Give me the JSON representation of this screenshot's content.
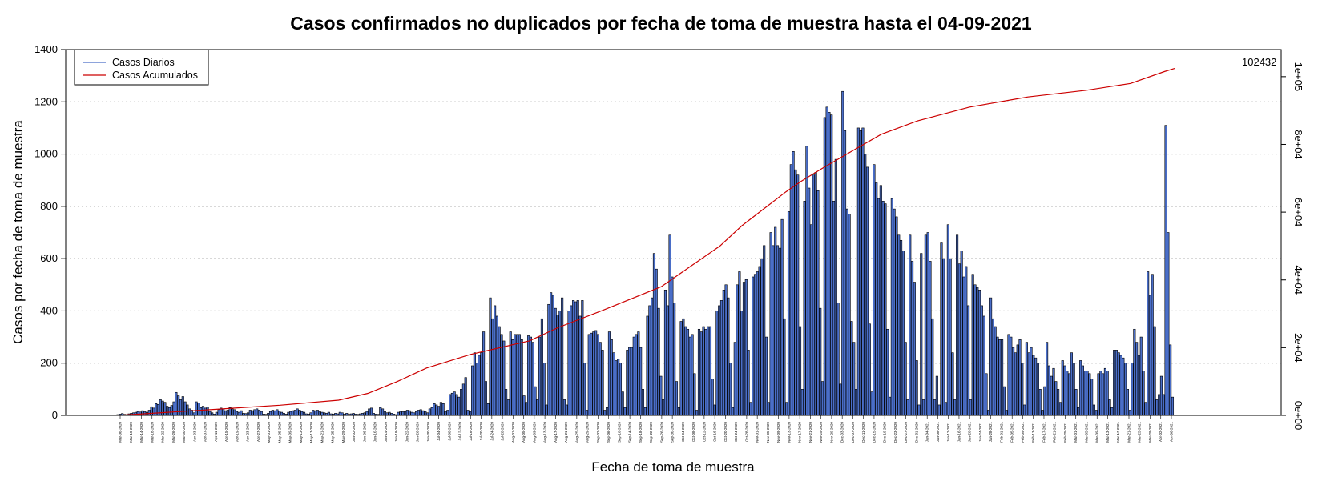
{
  "chart_data": {
    "type": "bar",
    "title": "Casos confirmados no duplicados por fecha de toma de muestra hasta el 04-09-2021",
    "xlabel": "Fecha de toma de muestra",
    "ylabel": "Casos por fecha de toma de muestra",
    "ylim": [
      0,
      1400
    ],
    "yticks": [
      0,
      200,
      400,
      600,
      800,
      1000,
      1200,
      1400
    ],
    "y2lim": [
      0,
      108000
    ],
    "y2ticks": [
      "0e+00",
      "2e+04",
      "4e+04",
      "6e+04",
      "8e+04",
      "1e+05"
    ],
    "grid": true,
    "legend_position": "top-left",
    "colors": {
      "daily": "#4a6ec8",
      "bar_outline": "#000000",
      "cumulative": "#cc0000",
      "grid": "#999999"
    },
    "final_cumulative_label": "102432",
    "series": [
      {
        "name": "Casos Diarios",
        "kind": "bar",
        "values": [
          2,
          3,
          5,
          7,
          4,
          3,
          6,
          8,
          10,
          12,
          15,
          13,
          18,
          14,
          12,
          20,
          33,
          28,
          45,
          42,
          60,
          55,
          50,
          35,
          30,
          38,
          52,
          88,
          75,
          60,
          72,
          52,
          40,
          25,
          20,
          10,
          52,
          48,
          30,
          35,
          28,
          32,
          15,
          10,
          5,
          12,
          22,
          28,
          25,
          18,
          20,
          30,
          25,
          22,
          15,
          12,
          18,
          8,
          7,
          10,
          20,
          18,
          22,
          25,
          20,
          15,
          5,
          4,
          8,
          15,
          20,
          18,
          22,
          16,
          12,
          8,
          5,
          12,
          15,
          18,
          20,
          25,
          20,
          15,
          12,
          6,
          5,
          10,
          20,
          18,
          20,
          15,
          12,
          10,
          8,
          12,
          6,
          5,
          8,
          6,
          12,
          10,
          5,
          8,
          4,
          6,
          8,
          5,
          4,
          6,
          8,
          10,
          15,
          25,
          28,
          8,
          5,
          4,
          30,
          25,
          15,
          10,
          12,
          8,
          5,
          3,
          12,
          15,
          14,
          15,
          20,
          18,
          12,
          10,
          15,
          20,
          22,
          18,
          15,
          10,
          25,
          30,
          45,
          40,
          35,
          50,
          45,
          15,
          20,
          80,
          85,
          90,
          80,
          70,
          100,
          120,
          145,
          20,
          15,
          190,
          240,
          200,
          230,
          240,
          320,
          130,
          45,
          450,
          370,
          420,
          380,
          340,
          310,
          285,
          100,
          60,
          320,
          290,
          310,
          310,
          310,
          290,
          75,
          50,
          305,
          300,
          280,
          110,
          60,
          300,
          370,
          200,
          40,
          425,
          470,
          460,
          410,
          385,
          400,
          450,
          60,
          40,
          400,
          420,
          440,
          435,
          440,
          380,
          440,
          200,
          20,
          310,
          315,
          320,
          325,
          310,
          280,
          250,
          20,
          30,
          320,
          290,
          240,
          210,
          215,
          200,
          90,
          30,
          250,
          260,
          260,
          300,
          310,
          320,
          260,
          100,
          30,
          380,
          420,
          450,
          620,
          560,
          410,
          150,
          60,
          480,
          420,
          690,
          530,
          430,
          130,
          30,
          360,
          370,
          340,
          330,
          300,
          310,
          160,
          20,
          330,
          320,
          340,
          330,
          340,
          340,
          140,
          40,
          400,
          420,
          440,
          480,
          500,
          450,
          200,
          30,
          280,
          500,
          550,
          400,
          510,
          520,
          250,
          50,
          530,
          540,
          550,
          570,
          600,
          650,
          300,
          50,
          700,
          650,
          720,
          650,
          640,
          750,
          370,
          50,
          780,
          960,
          1010,
          940,
          920,
          340,
          100,
          820,
          1030,
          870,
          730,
          920,
          930,
          860,
          410,
          130,
          1140,
          1180,
          1160,
          1150,
          820,
          980,
          430,
          120,
          1240,
          1090,
          790,
          770,
          360,
          280,
          100,
          1100,
          1090,
          1100,
          1000,
          950,
          350,
          90,
          960,
          890,
          830,
          880,
          820,
          810,
          330,
          70,
          830,
          790,
          760,
          690,
          670,
          630,
          280,
          60,
          690,
          590,
          510,
          210,
          40,
          620,
          60,
          690,
          700,
          590,
          370,
          60,
          150,
          40,
          660,
          600,
          50,
          730,
          600,
          240,
          60,
          690,
          580,
          630,
          530,
          570,
          420,
          60,
          540,
          500,
          490,
          480,
          420,
          380,
          160,
          20,
          450,
          370,
          340,
          300,
          290,
          290,
          110,
          20,
          310,
          300,
          260,
          240,
          270,
          290,
          200,
          40,
          280,
          240,
          260,
          230,
          220,
          200,
          100,
          20,
          110,
          280,
          190,
          150,
          180,
          130,
          100,
          50,
          210,
          190,
          170,
          160,
          240,
          200,
          100,
          30,
          210,
          190,
          170,
          170,
          160,
          140,
          40,
          20,
          160,
          170,
          160,
          180,
          170,
          60,
          30,
          250,
          250,
          240,
          230,
          220,
          200,
          100,
          20,
          200,
          330,
          280,
          230,
          300,
          170,
          50,
          550,
          460,
          540,
          340,
          60,
          80,
          150,
          80,
          1110,
          700,
          270,
          70
        ]
      },
      {
        "name": "Casos Acumulados",
        "kind": "line",
        "points": [
          [
            0,
            0
          ],
          [
            55,
            1500
          ],
          [
            110,
            3000
          ],
          [
            150,
            4500
          ],
          [
            170,
            6500
          ],
          [
            190,
            10000
          ],
          [
            210,
            14000
          ],
          [
            240,
            18000
          ],
          [
            280,
            22000
          ],
          [
            300,
            26000
          ],
          [
            330,
            31000
          ],
          [
            370,
            38000
          ],
          [
            390,
            44000
          ],
          [
            410,
            50000
          ],
          [
            425,
            56000
          ],
          [
            440,
            61000
          ],
          [
            455,
            66000
          ],
          [
            465,
            69000
          ],
          [
            480,
            73000
          ],
          [
            500,
            78000
          ],
          [
            520,
            83000
          ],
          [
            545,
            87000
          ],
          [
            580,
            91000
          ],
          [
            620,
            94000
          ],
          [
            660,
            96000
          ],
          [
            690,
            98000
          ],
          [
            713,
            101500
          ],
          [
            720,
            102432
          ]
        ]
      }
    ],
    "x_tick_labels": [
      "Mar-06-2020",
      "Mar-10-2020",
      "Mar-14-2020",
      "Mar-18-2020",
      "Mar-22-2020",
      "Mar-26-2020",
      "Mar-30-2020",
      "Apr-03-2020",
      "Apr-07-2020",
      "Apr-11-2020",
      "Apr-15-2020",
      "Apr-19-2020",
      "Apr-23-2020",
      "Apr-27-2020",
      "May-01-2020",
      "May-05-2020",
      "May-09-2020",
      "May-13-2020",
      "May-17-2020",
      "May-21-2020",
      "May-25-2020",
      "May-29-2020",
      "Jun-02-2020",
      "Jun-06-2020",
      "Jun-10-2020",
      "Jun-14-2020",
      "Jun-18-2020",
      "Jun-22-2020",
      "Jun-26-2020",
      "Jun-30-2020",
      "Jul-04-2020",
      "Jul-08-2020",
      "Jul-12-2020",
      "Jul-16-2020",
      "Jul-20-2020",
      "Jul-24-2020",
      "Jul-28-2020",
      "Aug-01-2020",
      "Aug-05-2020",
      "Aug-09-2020",
      "Aug-13-2020",
      "Aug-17-2020",
      "Aug-21-2020",
      "Aug-25-2020",
      "Aug-29-2020",
      "Sep-02-2020",
      "Sep-06-2020",
      "Sep-10-2020",
      "Sep-14-2020",
      "Sep-18-2020",
      "Sep-22-2020",
      "Sep-26-2020",
      "Sep-30-2020",
      "Oct-04-2020",
      "Oct-08-2020",
      "Oct-12-2020",
      "Oct-16-2020",
      "Oct-20-2020",
      "Oct-24-2020",
      "Oct-28-2020",
      "Nov-01-2020",
      "Nov-05-2020",
      "Nov-09-2020",
      "Nov-13-2020",
      "Nov-17-2020",
      "Nov-21-2020",
      "Nov-25-2020",
      "Nov-29-2020",
      "Dec-03-2020",
      "Dec-07-2020",
      "Dec-11-2020",
      "Dec-15-2020",
      "Dec-19-2020",
      "Dec-23-2020",
      "Dec-27-2020",
      "Dec-31-2020",
      "Jan-04-2021",
      "Jan-08-2021",
      "Jan-12-2021",
      "Jan-16-2021",
      "Jan-20-2021",
      "Jan-24-2021",
      "Jan-28-2021",
      "Feb-01-2021",
      "Feb-05-2021",
      "Feb-09-2021",
      "Feb-13-2021",
      "Feb-17-2021",
      "Feb-21-2021",
      "Feb-25-2021",
      "Mar-01-2021",
      "Mar-05-2021",
      "Mar-09-2021",
      "Mar-13-2021",
      "Mar-17-2021",
      "Mar-21-2021",
      "Mar-25-2021",
      "Mar-29-2021",
      "Apr-02-2021",
      "Apr-06-2021"
    ]
  }
}
